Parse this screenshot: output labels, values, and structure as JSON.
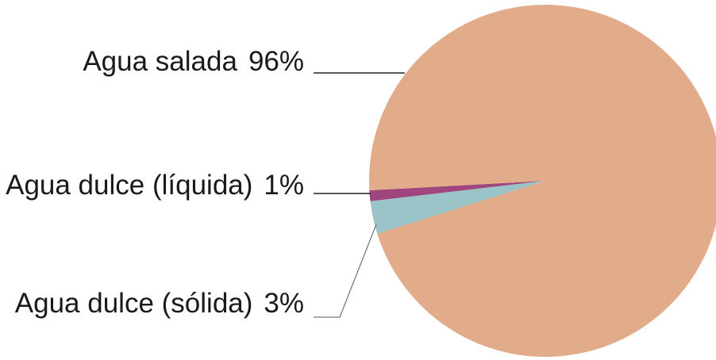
{
  "chart_data": {
    "type": "pie",
    "categories": [
      "Agua salada",
      "Agua dulce (líquida)",
      "Agua dulce (sólida)"
    ],
    "values": [
      96,
      1,
      3
    ],
    "value_labels": [
      "96%",
      "1%",
      "3%"
    ],
    "colors": [
      "#e2ab89",
      "#a0467e",
      "#9bc4c8"
    ]
  }
}
